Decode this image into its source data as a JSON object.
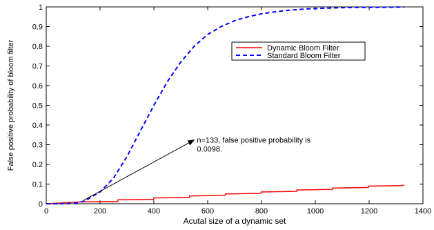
{
  "chart_data": {
    "type": "line",
    "title": "",
    "xlabel": "Acutal size of a dynamic set",
    "ylabel": "False positive probability of bloom filter",
    "xlim": [
      0,
      1400
    ],
    "ylim": [
      0,
      1
    ],
    "xticks": [
      0,
      200,
      400,
      600,
      800,
      1000,
      1200,
      1400
    ],
    "yticks": [
      0,
      0.1,
      0.2,
      0.3,
      0.4,
      0.5,
      0.6,
      0.7,
      0.8,
      0.9,
      1
    ],
    "grid": false,
    "legend_position": "upper-right",
    "series": [
      {
        "name": "Dynamic Bloom Filter",
        "color": "#ff0000",
        "style": "solid",
        "x": [
          0,
          133,
          150,
          266,
          267,
          280,
          399,
          400,
          420,
          532,
          533,
          550,
          665,
          666,
          680,
          798,
          799,
          810,
          931,
          932,
          950,
          1064,
          1065,
          1080,
          1197,
          1198,
          1210,
          1320,
          1330
        ],
        "y": [
          0,
          0.0098,
          0.01,
          0.011,
          0.02,
          0.02,
          0.022,
          0.03,
          0.03,
          0.032,
          0.04,
          0.04,
          0.043,
          0.05,
          0.05,
          0.053,
          0.06,
          0.06,
          0.063,
          0.07,
          0.07,
          0.073,
          0.08,
          0.08,
          0.083,
          0.09,
          0.09,
          0.092,
          0.095
        ]
      },
      {
        "name": "Standard Bloom Filter",
        "color": "#0000ff",
        "style": "dashed",
        "x": [
          0,
          50,
          100,
          133,
          150,
          200,
          250,
          300,
          350,
          400,
          450,
          500,
          550,
          600,
          650,
          700,
          750,
          800,
          850,
          900,
          950,
          1000,
          1050,
          1100,
          1150,
          1200,
          1250,
          1300,
          1330
        ],
        "y": [
          0,
          0,
          0.002,
          0.0098,
          0.02,
          0.06,
          0.13,
          0.24,
          0.37,
          0.5,
          0.62,
          0.72,
          0.8,
          0.86,
          0.9,
          0.93,
          0.95,
          0.965,
          0.975,
          0.983,
          0.988,
          0.992,
          0.994,
          0.996,
          0.997,
          0.998,
          0.998,
          0.999,
          0.999
        ]
      }
    ],
    "annotations": [
      {
        "lines": [
          "n=133, false positive probability is",
          "0.0098."
        ],
        "point": [
          133,
          0.0098
        ],
        "text_anchor": [
          560,
          0.31
        ]
      }
    ]
  }
}
